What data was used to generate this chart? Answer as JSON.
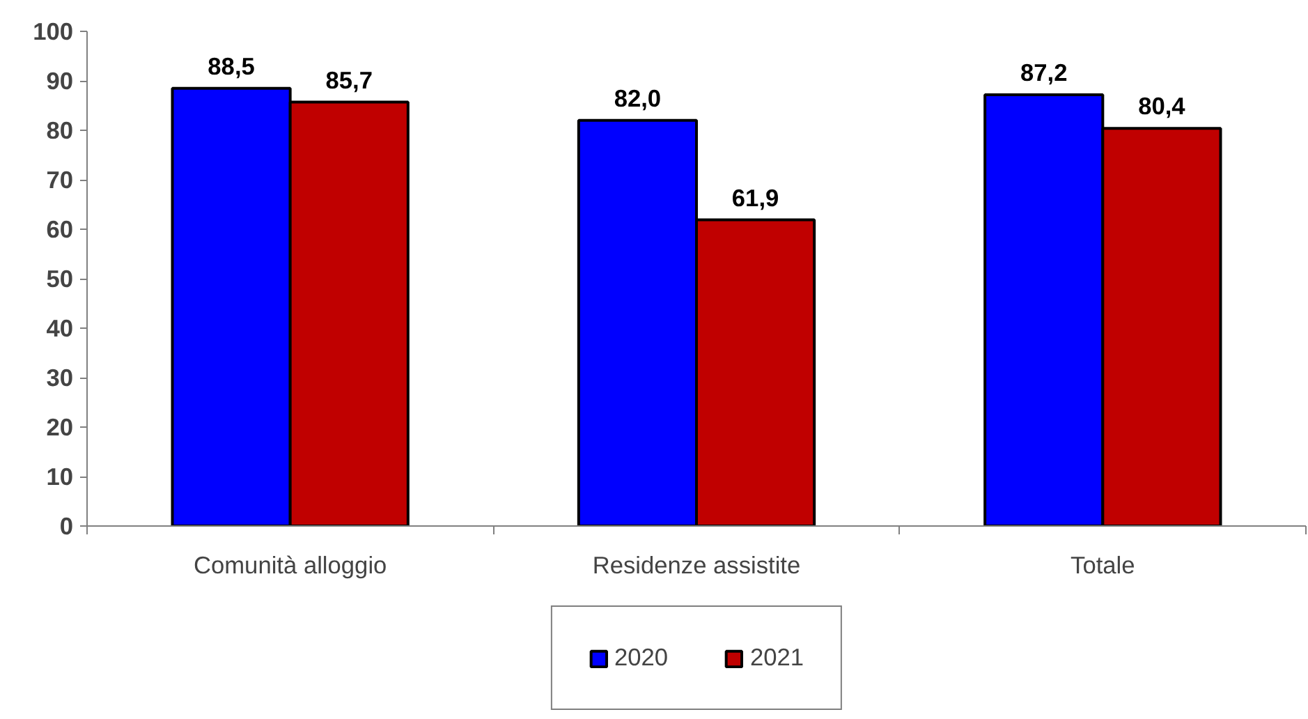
{
  "chart_data": {
    "type": "bar",
    "categories": [
      "Comunità alloggio",
      "Residenze assistite",
      "Totale"
    ],
    "series": [
      {
        "name": "2020",
        "color": "#0000ff",
        "values": [
          88.5,
          82.0,
          87.2
        ],
        "value_labels": [
          "88,5",
          "82,0",
          "87,2"
        ]
      },
      {
        "name": "2021",
        "color": "#c00000",
        "values": [
          85.7,
          61.9,
          80.4
        ],
        "value_labels": [
          "85,7",
          "61,9",
          "80,4"
        ]
      }
    ],
    "ylim": [
      0,
      100
    ],
    "yticks": [
      0,
      10,
      20,
      30,
      40,
      50,
      60,
      70,
      80,
      90,
      100
    ],
    "grid": false,
    "legend": "bottom"
  }
}
